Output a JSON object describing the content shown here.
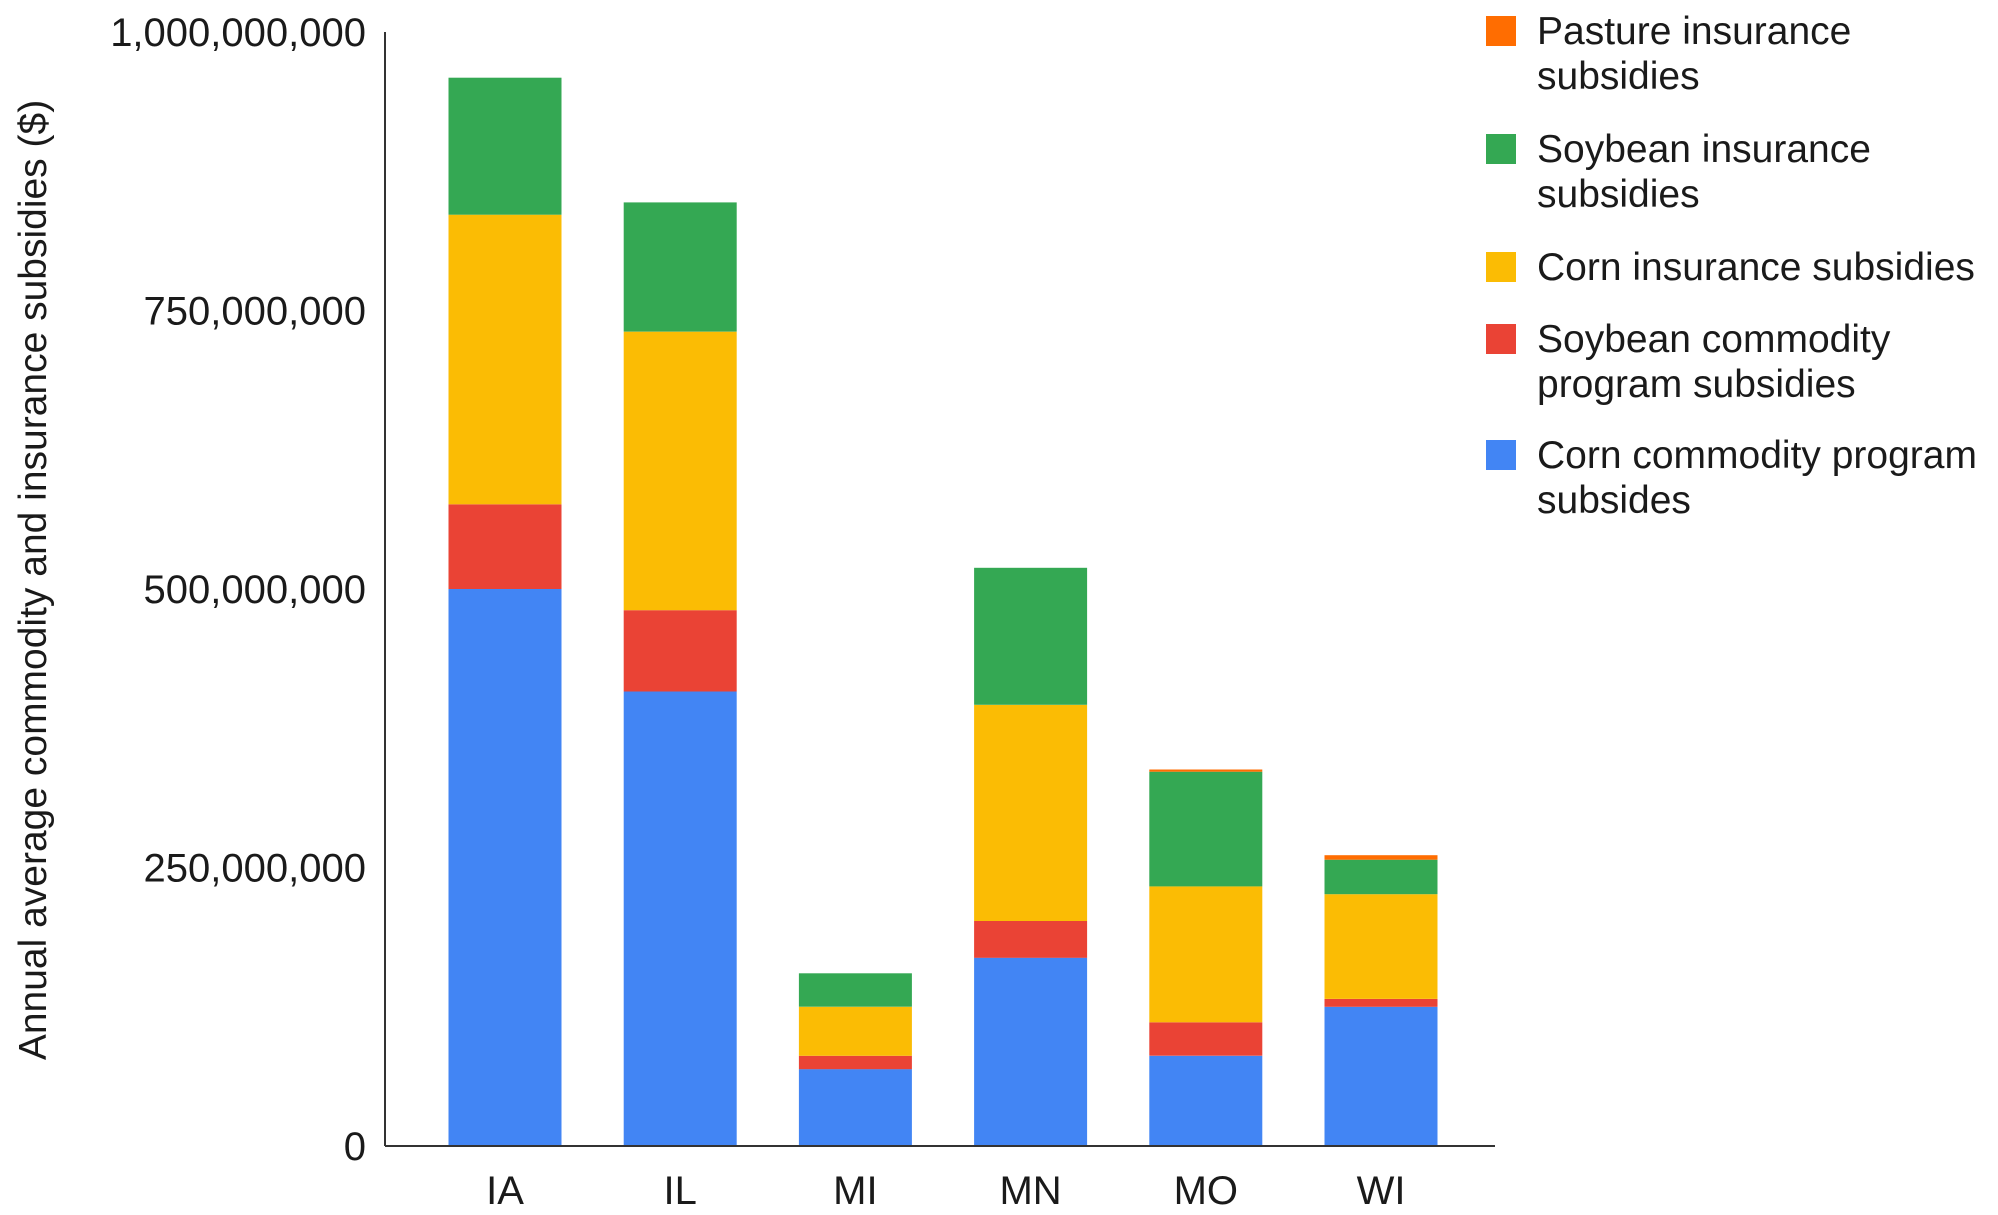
{
  "chart_data": {
    "type": "bar",
    "stacked": true,
    "title": "",
    "xlabel": "",
    "ylabel": "Annual average commodity and insurance subsidies ($)",
    "ylim": [
      0,
      1000000000
    ],
    "yticks": [
      0,
      250000000,
      500000000,
      750000000,
      1000000000
    ],
    "ytick_labels": [
      "0",
      "250,000,000",
      "500,000,000",
      "750,000,000",
      "1,000,000,000"
    ],
    "grid": false,
    "legend_position": "right",
    "categories": [
      "IA",
      "IL",
      "MI",
      "MN",
      "MO",
      "WI"
    ],
    "series": [
      {
        "name": "Corn commodity program subsides",
        "color": "#4285f4",
        "values": [
          500000000,
          408000000,
          69000000,
          169000000,
          81000000,
          125000000
        ]
      },
      {
        "name": "Soybean commodity program subsidies",
        "color": "#ea4335",
        "values": [
          76000000,
          73000000,
          12000000,
          33000000,
          30000000,
          7000000
        ]
      },
      {
        "name": "Corn insurance subsidies",
        "color": "#fbbc04",
        "values": [
          260000000,
          250000000,
          44000000,
          194000000,
          122000000,
          94000000
        ]
      },
      {
        "name": "Soybean insurance subsidies",
        "color": "#34a853",
        "values": [
          123000000,
          116000000,
          30000000,
          123000000,
          103000000,
          31000000
        ]
      },
      {
        "name": "Pasture insurance subsidies",
        "color": "#ff6d01",
        "values": [
          0,
          0,
          0,
          0,
          2000000,
          4000000
        ]
      }
    ],
    "legend_order": [
      "Pasture insurance subsidies",
      "Soybean insurance subsidies",
      "Corn insurance subsidies",
      "Soybean commodity program subsidies",
      "Corn commodity program subsides"
    ],
    "legend_display": {
      "Pasture insurance subsidies": [
        "Pasture insurance",
        "subsidies"
      ],
      "Soybean insurance subsidies": [
        "Soybean insurance",
        "subsidies"
      ],
      "Corn insurance subsidies": [
        "Corn insurance subsidies"
      ],
      "Soybean commodity program subsidies": [
        "Soybean commodity",
        "program subsidies"
      ],
      "Corn commodity program subsides": [
        "Corn commodity program",
        "subsides"
      ]
    }
  }
}
